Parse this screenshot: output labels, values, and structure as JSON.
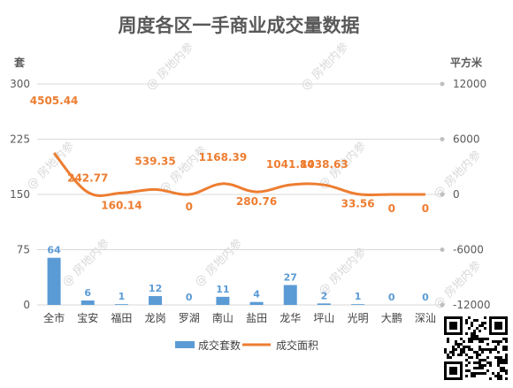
{
  "watermark": "@ 房地内参",
  "colors": {
    "bar": "#5b9bd5",
    "line": "#ed7d31",
    "grid": "#d9d9d9"
  },
  "chart_data": {
    "type": "bar+line",
    "title": "周度各区一手商业成交量数据",
    "left_axis_label": "套",
    "right_axis_label": "平方米",
    "categories": [
      "全市",
      "宝安",
      "福田",
      "龙岗",
      "罗湖",
      "南山",
      "盐田",
      "龙华",
      "坪山",
      "光明",
      "大鹏",
      "深汕"
    ],
    "series": [
      {
        "name": "成交套数",
        "type": "bar",
        "axis": "left",
        "values": [
          64,
          6,
          1,
          12,
          0,
          11,
          4,
          27,
          2,
          1,
          0,
          0
        ],
        "labels": [
          "64",
          "6",
          "1",
          "12",
          "0",
          "11",
          "4",
          "27",
          "2",
          "1",
          "0",
          "0"
        ]
      },
      {
        "name": "成交面积",
        "type": "line",
        "axis": "right",
        "values": [
          4505.44,
          242.77,
          160.14,
          539.35,
          0,
          1168.39,
          280.76,
          1041.84,
          1038.63,
          33.56,
          0,
          0
        ],
        "labels": [
          "4505.44",
          "242.77",
          "160.14",
          "539.35",
          "0",
          "1168.39",
          "280.76",
          "1041.84",
          "1038.63",
          "33.56",
          "0",
          "0"
        ]
      }
    ],
    "left_axis": {
      "min": 0,
      "max": 300,
      "ticks": [
        0,
        75,
        150,
        225,
        300
      ],
      "tick_labels": [
        "0",
        "75",
        "150",
        "225",
        "300"
      ]
    },
    "right_axis": {
      "min": -12000,
      "max": 12000,
      "ticks": [
        -12000,
        -6000,
        0,
        6000,
        12000
      ],
      "tick_labels": [
        "-12000",
        "-6000",
        "0",
        "6000",
        "12000"
      ]
    },
    "grid": true,
    "legend_position": "bottom"
  }
}
